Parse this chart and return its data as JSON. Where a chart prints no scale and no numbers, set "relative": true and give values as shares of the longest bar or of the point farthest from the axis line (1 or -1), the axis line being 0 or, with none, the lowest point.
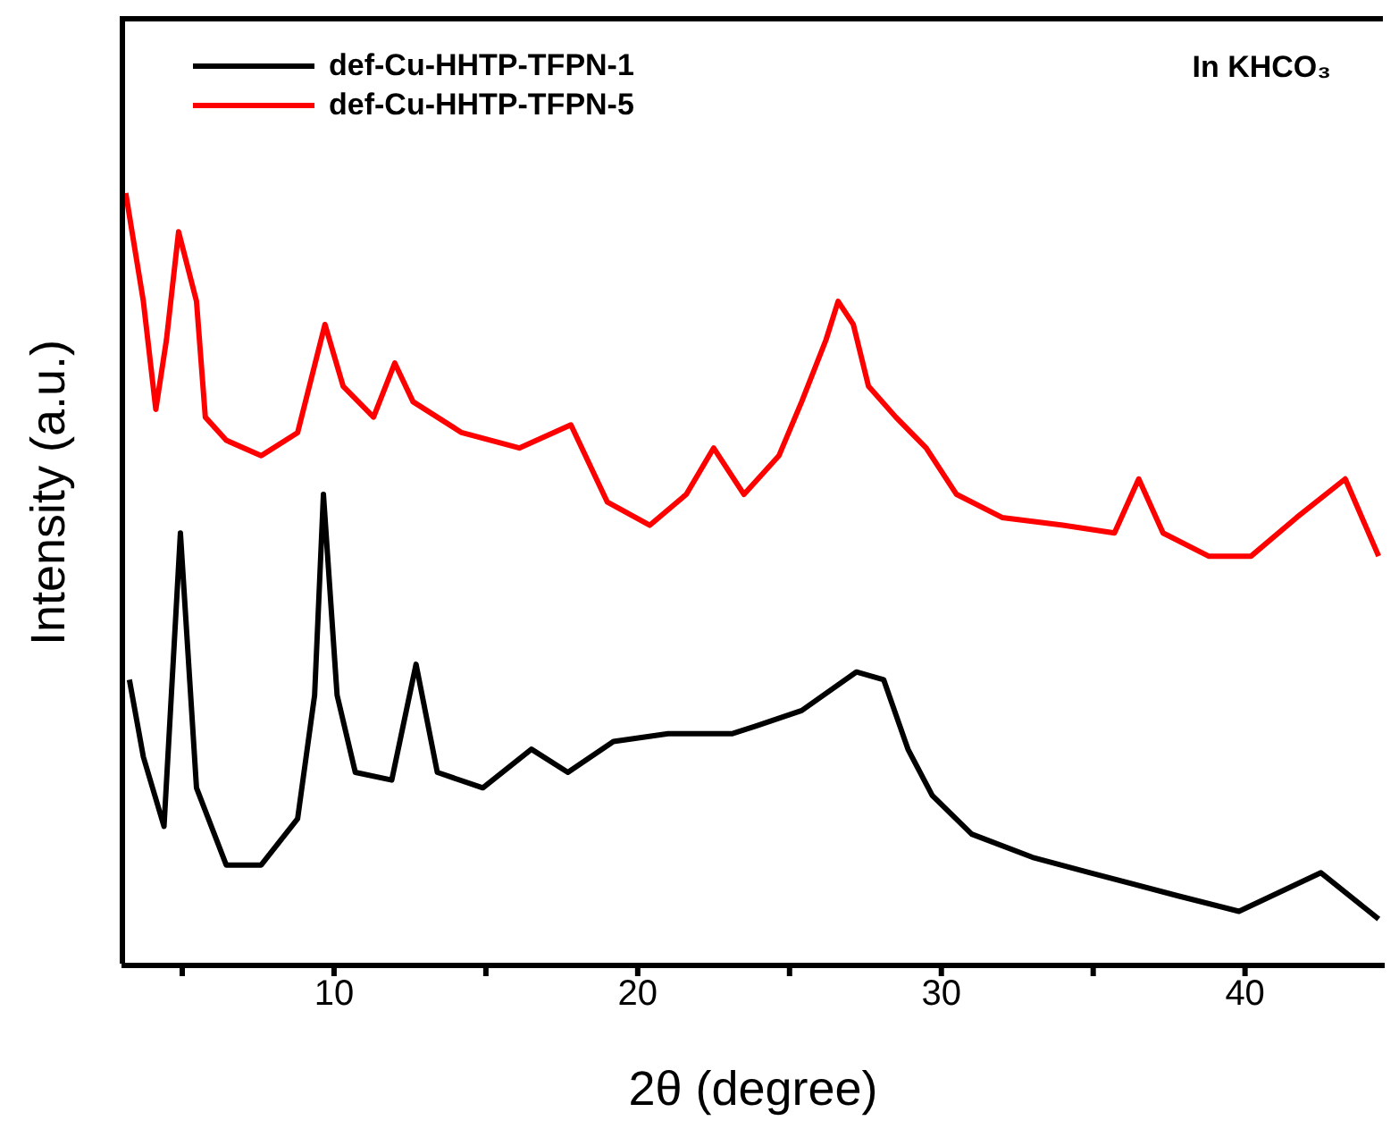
{
  "chart_data": {
    "type": "line",
    "relative": true,
    "xlabel": "2θ (degree)",
    "ylabel": "Intensity (a.u.)",
    "annotations": [
      "In KHCO₃"
    ],
    "xlim": [
      3,
      44.6
    ],
    "xticks": [
      {
        "value": 5,
        "label": null
      },
      10,
      {
        "value": 15,
        "label": null
      },
      20,
      {
        "value": 25,
        "label": null
      },
      30,
      {
        "value": 35,
        "label": null
      },
      40
    ],
    "legend": "top left",
    "grid": false,
    "marker": "none",
    "line_style": "solid",
    "series": [
      {
        "name": "def-Cu-HHTP-TFPN-1",
        "color": "#000000",
        "x": [
          3.26,
          3.72,
          4.4,
          4.94,
          5.47,
          6.45,
          7.6,
          8.8,
          9.36,
          9.65,
          10.1,
          10.7,
          11.9,
          12.7,
          13.4,
          14.9,
          16.5,
          17.7,
          19.2,
          21.0,
          23.1,
          23.9,
          25.4,
          27.2,
          28.1,
          28.9,
          29.7,
          31.0,
          33.0,
          34.9,
          37.8,
          39.8,
          42.5,
          44.4
        ],
        "values": [
          0.37,
          0.27,
          0.18,
          0.56,
          0.23,
          0.13,
          0.13,
          0.19,
          0.35,
          0.61,
          0.35,
          0.25,
          0.24,
          0.39,
          0.25,
          0.23,
          0.28,
          0.25,
          0.29,
          0.3,
          0.3,
          0.31,
          0.33,
          0.38,
          0.37,
          0.28,
          0.22,
          0.17,
          0.14,
          0.12,
          0.09,
          0.07,
          0.12,
          0.06
        ]
      },
      {
        "name": "def-Cu-HHTP-TFPN-5",
        "color": "#ff0000",
        "x": [
          3.14,
          3.72,
          4.13,
          4.48,
          4.88,
          5.47,
          5.76,
          6.45,
          7.6,
          8.8,
          9.7,
          10.3,
          11.3,
          12.0,
          12.6,
          14.2,
          16.1,
          17.8,
          19.0,
          20.4,
          21.6,
          22.5,
          23.5,
          24.65,
          25.4,
          26.2,
          26.6,
          27.1,
          27.6,
          28.5,
          29.5,
          30.5,
          32.0,
          34.0,
          35.7,
          36.5,
          37.3,
          38.8,
          40.2,
          41.7,
          43.3,
          44.4
        ],
        "values": [
          1.0,
          0.86,
          0.72,
          0.81,
          0.95,
          0.86,
          0.71,
          0.68,
          0.66,
          0.69,
          0.83,
          0.75,
          0.71,
          0.78,
          0.73,
          0.69,
          0.67,
          0.7,
          0.6,
          0.57,
          0.61,
          0.67,
          0.61,
          0.66,
          0.73,
          0.81,
          0.86,
          0.83,
          0.75,
          0.71,
          0.67,
          0.61,
          0.58,
          0.57,
          0.56,
          0.63,
          0.56,
          0.53,
          0.53,
          0.58,
          0.63,
          0.53
        ]
      }
    ]
  }
}
